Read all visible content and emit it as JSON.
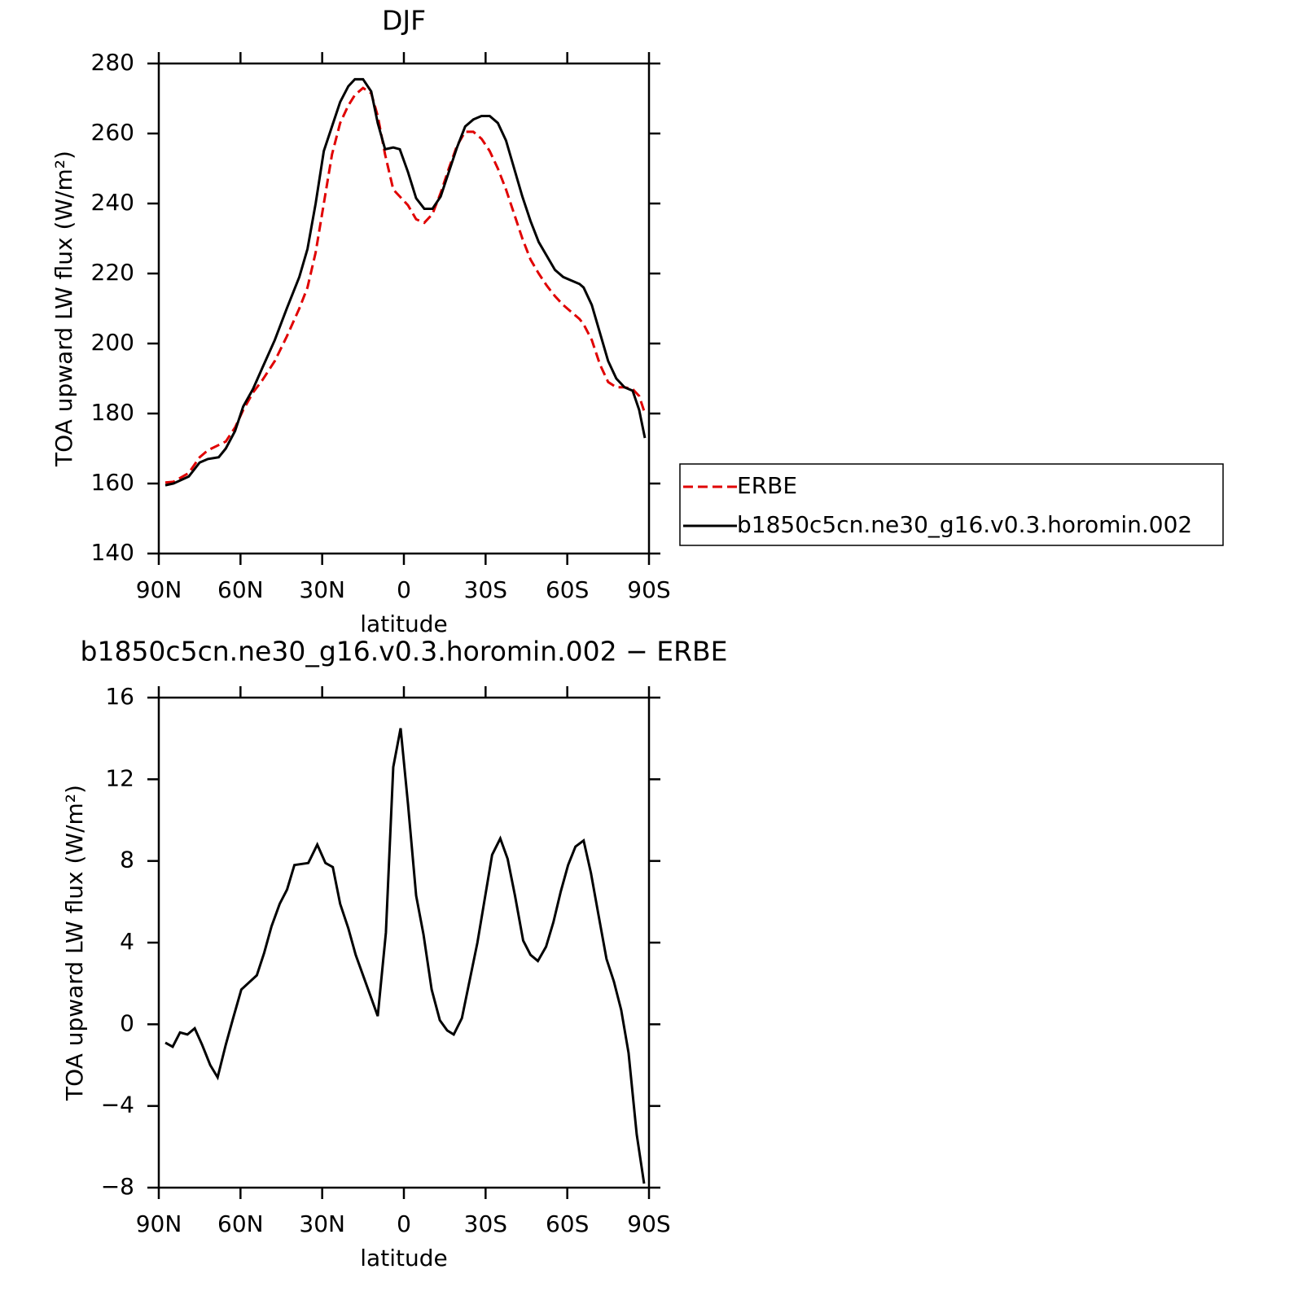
{
  "chart_data": [
    {
      "type": "line",
      "title": "DJF",
      "xlabel": "latitude",
      "ylabel": "TOA upward LW flux (W/m²)",
      "xlim": [
        90,
        -90
      ],
      "xticks": [
        {
          "value": 90,
          "label": "90N"
        },
        {
          "value": 60,
          "label": "60N"
        },
        {
          "value": 30,
          "label": "30N"
        },
        0,
        {
          "value": -30,
          "label": "30S"
        },
        {
          "value": -60,
          "label": "60S"
        },
        {
          "value": -90,
          "label": "90S"
        }
      ],
      "ylim": [
        140,
        280
      ],
      "yticks": [
        140,
        160,
        180,
        200,
        220,
        240,
        260,
        280
      ],
      "legend": "right",
      "x": [
        87.6,
        84.6,
        79,
        75,
        72,
        68,
        65.4,
        62,
        59,
        55.4,
        52,
        47.4,
        43,
        38.4,
        35.4,
        32.4,
        29.4,
        26.4,
        23.4,
        20.4,
        18,
        15,
        12,
        9.6,
        6.9,
        3.9,
        1.5,
        -1.5,
        -4.5,
        -7.5,
        -10.5,
        -13.5,
        -16.5,
        -19.5,
        -22.5,
        -25.5,
        -28.5,
        -31.5,
        -34.5,
        -37.5,
        -40.5,
        -43.5,
        -46.5,
        -49.5,
        -52.5,
        -55.5,
        -58.5,
        -61.5,
        -64.5,
        -66,
        -69,
        -72,
        -75,
        -78,
        -81,
        -84,
        -86.4,
        -88.5
      ],
      "series": [
        {
          "name": "ERBE",
          "color": "#e00000",
          "line_style": "dashed",
          "values": [
            160.3,
            160.5,
            163,
            167.5,
            169.5,
            171,
            172,
            176,
            181,
            186,
            189.5,
            195,
            202,
            210,
            216,
            226,
            240,
            254,
            263,
            268,
            271,
            273,
            271.5,
            265,
            254,
            244,
            242,
            239.5,
            235.5,
            234.5,
            237,
            243,
            250,
            256.5,
            260.5,
            260.5,
            258.5,
            255,
            250,
            244,
            237,
            230,
            224,
            220,
            216.5,
            213.5,
            211,
            209,
            207,
            205.5,
            201,
            194,
            189,
            187.5,
            187.5,
            187,
            185,
            180
          ]
        },
        {
          "name": "b1850c5cn.ne30_g16.v0.3.horomin.002",
          "color": "#000000",
          "line_style": "solid",
          "values": [
            159.5,
            160,
            162,
            166,
            167,
            167.5,
            170,
            175,
            182,
            187,
            193,
            201,
            210,
            219,
            227,
            240,
            255,
            262,
            269,
            273.5,
            275.5,
            275.5,
            272,
            263,
            255.5,
            256,
            255.5,
            249,
            241.5,
            238.5,
            238.5,
            242,
            249,
            256,
            262,
            264,
            265,
            265,
            263,
            258,
            250,
            242,
            235,
            229,
            225,
            221,
            219,
            218,
            217,
            216,
            211,
            203,
            195,
            190,
            187.5,
            186.5,
            181,
            173
          ]
        }
      ]
    },
    {
      "type": "line",
      "title": "b1850c5cn.ne30_g16.v0.3.horomin.002 − ERBE",
      "xlabel": "latitude",
      "ylabel": "TOA upward LW flux (W/m²)",
      "xlim": [
        90,
        -90
      ],
      "xticks": [
        {
          "value": 90,
          "label": "90N"
        },
        {
          "value": 60,
          "label": "60N"
        },
        {
          "value": 30,
          "label": "30N"
        },
        0,
        {
          "value": -30,
          "label": "30S"
        },
        {
          "value": -60,
          "label": "60S"
        },
        {
          "value": -90,
          "label": "90S"
        }
      ],
      "ylim": [
        -8,
        16
      ],
      "yticks": [
        {
          "value": -8,
          "label": "−8"
        },
        {
          "value": -4,
          "label": "−4"
        },
        0,
        4,
        8,
        12,
        16
      ],
      "x": [
        87.6,
        84.9,
        82.2,
        79.5,
        76.8,
        74.1,
        71.1,
        68.4,
        65.4,
        62.7,
        59.7,
        54,
        51.3,
        48.6,
        45.6,
        42.9,
        40.2,
        35.1,
        31.8,
        28.8,
        26.1,
        23.4,
        20.4,
        17.7,
        9.6,
        6.6,
        3.9,
        1.2,
        -1.5,
        -4.5,
        -7.2,
        -10.2,
        -13.2,
        -15.9,
        -18.3,
        -21.3,
        -27,
        -32.4,
        -35.4,
        -38.1,
        -40.8,
        -43.8,
        -46.5,
        -49.2,
        -52.2,
        -54.9,
        -57.6,
        -60.3,
        -63,
        -66,
        -68.7,
        -71.4,
        -74.4,
        -77.1,
        -79.8,
        -82.5,
        -85.5,
        -88.2
      ],
      "series": [
        {
          "color": "#000000",
          "line_style": "solid",
          "values": [
            -0.9,
            -1.1,
            -0.4,
            -0.5,
            -0.2,
            -1,
            -2,
            -2.6,
            -1,
            0.3,
            1.7,
            2.4,
            3.5,
            4.8,
            5.9,
            6.6,
            7.8,
            7.9,
            8.8,
            7.9,
            7.7,
            5.9,
            4.7,
            3.4,
            0.4,
            4.5,
            12.6,
            14.5,
            10.8,
            6.3,
            4.4,
            1.7,
            0.2,
            -0.3,
            -0.5,
            0.3,
            4,
            8.3,
            9.1,
            8.1,
            6.3,
            4.1,
            3.4,
            3.1,
            3.8,
            5,
            6.5,
            7.8,
            8.7,
            9,
            7.4,
            5.4,
            3.2,
            2.1,
            0.7,
            -1.4,
            -5.4,
            -7.8
          ]
        }
      ]
    }
  ]
}
